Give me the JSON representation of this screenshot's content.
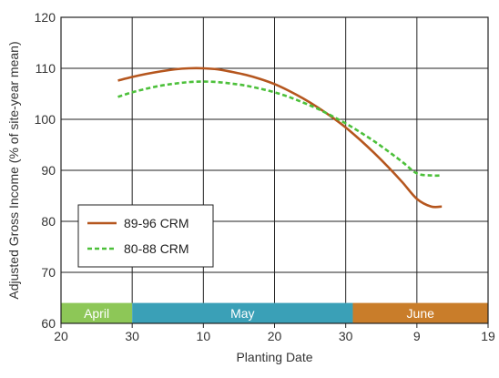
{
  "chart_data": {
    "type": "line",
    "title": "",
    "xlabel": "Planting Date",
    "ylabel": "Adjusted Gross Income (% of site-year mean)",
    "x_tick_labels": [
      "20",
      "30",
      "10",
      "20",
      "30",
      "9",
      "19"
    ],
    "x_ticks_days": [
      0,
      10,
      20,
      30,
      40,
      50,
      60
    ],
    "ylim": [
      60,
      120
    ],
    "y_ticks": [
      60,
      70,
      80,
      90,
      100,
      110,
      120
    ],
    "grid": true,
    "legend_position": "bottom-left",
    "month_bands": [
      {
        "label": "April",
        "start": 0,
        "end": 10,
        "color": "#8dc757"
      },
      {
        "label": "May",
        "start": 10,
        "end": 41,
        "color": "#3aa0b7"
      },
      {
        "label": "June",
        "start": 41,
        "end": 60,
        "color": "#c97d2a"
      }
    ],
    "series": [
      {
        "name": "89-96 CRM",
        "color": "#b5561e",
        "style": "solid",
        "x": [
          8,
          10,
          12,
          14,
          16,
          18,
          20,
          22,
          24,
          26,
          28,
          30,
          32,
          34,
          36,
          38,
          40,
          42,
          44,
          46,
          48,
          50,
          52,
          53.5
        ],
        "values": [
          107.6,
          108.3,
          108.9,
          109.4,
          109.8,
          110.0,
          110.0,
          109.8,
          109.3,
          108.7,
          107.9,
          106.9,
          105.6,
          104.1,
          102.4,
          100.5,
          98.4,
          96.0,
          93.4,
          90.6,
          87.6,
          84.4,
          82.9,
          82.9
        ]
      },
      {
        "name": "80-88 CRM",
        "color": "#4cc03a",
        "style": "dashed",
        "x": [
          8,
          10,
          12,
          14,
          16,
          18,
          20,
          22,
          24,
          26,
          28,
          30,
          32,
          34,
          36,
          38,
          40,
          42,
          44,
          46,
          48,
          50,
          52,
          53.5
        ],
        "values": [
          104.4,
          105.3,
          106.0,
          106.6,
          107.0,
          107.3,
          107.4,
          107.3,
          107.0,
          106.6,
          106.0,
          105.3,
          104.4,
          103.3,
          102.1,
          100.7,
          99.2,
          97.5,
          95.7,
          93.7,
          91.6,
          89.4,
          89.0,
          89.0
        ]
      }
    ]
  }
}
